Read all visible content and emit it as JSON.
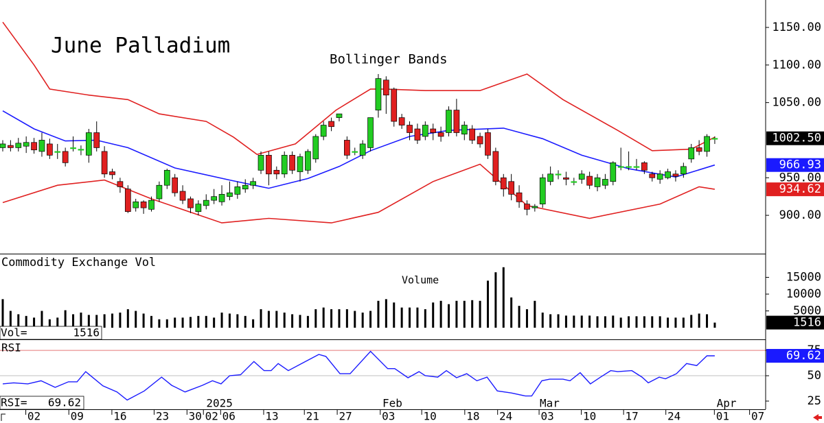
{
  "chart_data": [
    {
      "type": "candlestick",
      "title": "June Palladium",
      "subtitle": "Bollinger Bands",
      "open": [
        990,
        993,
        990,
        992,
        997,
        985,
        995,
        985,
        985,
        990,
        988,
        980,
        1010,
        985,
        958,
        945,
        935,
        910,
        918,
        908,
        922,
        940,
        950,
        932,
        922,
        905,
        913,
        920,
        918,
        925,
        928,
        935,
        940,
        960,
        980,
        960,
        955,
        980,
        958,
        960,
        975,
        1005,
        1025,
        1030,
        1000,
        985,
        980,
        990,
        1040,
        1080,
        1068,
        1030,
        1020,
        1015,
        1005,
        1015,
        1010,
        1010,
        1040,
        1008,
        1015,
        1005,
        1010,
        985,
        950,
        945,
        930,
        915,
        910,
        915,
        945,
        955,
        950,
        945,
        948,
        952,
        938,
        940,
        945,
        965,
        965,
        965,
        970,
        955,
        948,
        950,
        955,
        955,
        975,
        990,
        985,
        1002
      ],
      "high": [
        1000,
        1000,
        1003,
        1005,
        1003,
        1010,
        1002,
        995,
        990,
        1005,
        993,
        1015,
        1025,
        992,
        962,
        950,
        940,
        922,
        920,
        925,
        945,
        962,
        955,
        940,
        925,
        920,
        928,
        935,
        940,
        945,
        945,
        948,
        950,
        985,
        985,
        965,
        985,
        985,
        982,
        988,
        1008,
        1025,
        1030,
        1035,
        1005,
        990,
        1000,
        1030,
        1088,
        1085,
        1070,
        1035,
        1025,
        1022,
        1025,
        1022,
        1018,
        1045,
        1055,
        1025,
        1020,
        1010,
        1015,
        990,
        955,
        955,
        940,
        920,
        915,
        955,
        965,
        960,
        958,
        950,
        960,
        958,
        955,
        955,
        972,
        990,
        985,
        975,
        972,
        958,
        960,
        962,
        960,
        970,
        995,
        1000,
        1008,
        1005
      ],
      "low": [
        985,
        985,
        985,
        983,
        982,
        978,
        975,
        975,
        965,
        985,
        980,
        970,
        985,
        950,
        948,
        930,
        903,
        905,
        902,
        905,
        918,
        935,
        925,
        915,
        903,
        900,
        908,
        915,
        913,
        920,
        922,
        930,
        935,
        955,
        940,
        948,
        950,
        955,
        945,
        955,
        970,
        1000,
        1012,
        1025,
        975,
        980,
        975,
        985,
        1030,
        1035,
        1018,
        1015,
        1000,
        995,
        1000,
        1000,
        998,
        1005,
        1005,
        1000,
        995,
        990,
        975,
        940,
        925,
        920,
        910,
        900,
        905,
        910,
        940,
        948,
        940,
        940,
        942,
        935,
        932,
        935,
        940,
        960,
        960,
        960,
        955,
        945,
        942,
        948,
        945,
        950,
        970,
        980,
        978,
        995
      ],
      "close": [
        995,
        990,
        996,
        997,
        987,
        1000,
        980,
        985,
        970,
        990,
        988,
        1010,
        990,
        955,
        954,
        938,
        905,
        918,
        910,
        920,
        940,
        960,
        930,
        920,
        910,
        915,
        920,
        925,
        928,
        930,
        938,
        940,
        945,
        980,
        955,
        955,
        980,
        960,
        978,
        985,
        1005,
        1020,
        1018,
        1035,
        980,
        985,
        995,
        1030,
        1082,
        1060,
        1025,
        1020,
        1010,
        1000,
        1020,
        1010,
        1005,
        1040,
        1010,
        1020,
        1000,
        995,
        980,
        945,
        935,
        928,
        918,
        908,
        912,
        950,
        955,
        955,
        948,
        945,
        955,
        940,
        950,
        948,
        970,
        965,
        965,
        965,
        960,
        950,
        955,
        958,
        952,
        965,
        990,
        985,
        1005,
        1002.5
      ],
      "close_label": "1002.50",
      "up_color": "#22cc22",
      "down_color": "#e02020",
      "bands": [
        {
          "color": "#e02020",
          "x": [
            0,
            4,
            6,
            11,
            16,
            20,
            26,
            29.5,
            32.5,
            37.4,
            42.6,
            47,
            48.8,
            54,
            61,
            67,
            71.6,
            78.6,
            83,
            88,
            91
          ],
          "values": [
            1157,
            1100,
            1068,
            1060,
            1054,
            1035,
            1025,
            1004,
            981,
            995,
            1040,
            1068,
            1068,
            1066,
            1066,
            1088,
            1054,
            1013,
            986,
            988,
            1004
          ]
        },
        {
          "color": "#1a1aff",
          "x": [
            0,
            4,
            8,
            12,
            16,
            22,
            29,
            34,
            39,
            43,
            47,
            52,
            57,
            64,
            69,
            74,
            80,
            86,
            91
          ],
          "values": [
            1039,
            1015,
            999,
            1000,
            990,
            963,
            947,
            936,
            949,
            965,
            986,
            1005,
            1013,
            1016,
            1002,
            980,
            962,
            951,
            966.93
          ]
        },
        {
          "color": "#e02020",
          "x": [
            0,
            7,
            13,
            19,
            28,
            34,
            42,
            48,
            55,
            61,
            67,
            75,
            84,
            89,
            91
          ],
          "values": [
            917,
            940,
            947,
            922,
            890,
            896,
            890,
            904,
            945,
            968,
            913,
            896,
            915,
            938,
            934.62
          ]
        }
      ],
      "ylim": [
        849,
        1186.5
      ],
      "yticks": [
        {
          "value": 900,
          "label": "900.00"
        },
        {
          "value": 950,
          "label": "950.00"
        },
        {
          "value": 1050,
          "label": "1050.00"
        },
        {
          "value": 1100,
          "label": "1100.00"
        },
        {
          "value": 1150,
          "label": "1150.00"
        }
      ],
      "xlim": [
        -0.35,
        97.5
      ],
      "xticks": [
        {
          "value": 4.0,
          "label": "02"
        },
        {
          "value": 9.5,
          "label": "09"
        },
        {
          "value": 15,
          "label": "16"
        },
        {
          "value": 20.4,
          "label": "23"
        },
        {
          "value": 24.6,
          "label": "30"
        },
        {
          "value": 26.7,
          "label": "02"
        },
        {
          "value": 28.9,
          "label": "06"
        },
        {
          "value": 34.4,
          "label": "13"
        },
        {
          "value": 39.6,
          "label": "21"
        },
        {
          "value": 43.8,
          "label": "27"
        },
        {
          "value": 49.3,
          "label": "03"
        },
        {
          "value": 54.6,
          "label": "10"
        },
        {
          "value": 60.1,
          "label": "18"
        },
        {
          "value": 64.3,
          "label": "24"
        },
        {
          "value": 69.6,
          "label": "03"
        },
        {
          "value": 75,
          "label": "10"
        },
        {
          "value": 80.4,
          "label": "17"
        },
        {
          "value": 85.8,
          "label": "24"
        },
        {
          "value": 92,
          "label": "01"
        },
        {
          "value": 96.5,
          "label": "07"
        }
      ],
      "months": [
        {
          "value": 27.7,
          "label": "2025"
        },
        {
          "value": 49.8,
          "label": "Feb"
        },
        {
          "value": 69.9,
          "label": "Mar"
        },
        {
          "value": 92.5,
          "label": "Apr"
        }
      ]
    },
    {
      "type": "bar",
      "title": "Commodity Exchange Vol",
      "subtitle": "Volume",
      "readout_name": "Vol=",
      "color": "#000000",
      "values": [
        8500,
        5000,
        4000,
        3500,
        3000,
        5000,
        2500,
        3000,
        5200,
        4000,
        4500,
        3800,
        3800,
        4000,
        4200,
        4500,
        5500,
        5000,
        4200,
        3500,
        2500,
        2500,
        3000,
        3000,
        3200,
        3500,
        3500,
        3000,
        4500,
        4200,
        4000,
        3500,
        2500,
        5500,
        5000,
        5000,
        4500,
        4000,
        3800,
        3500,
        5500,
        6000,
        5500,
        5500,
        5500,
        5000,
        4500,
        5000,
        8000,
        8500,
        7500,
        6000,
        6000,
        6000,
        5500,
        7500,
        8000,
        7000,
        8000,
        8000,
        8200,
        8000,
        14000,
        16500,
        18000,
        9000,
        6500,
        5500,
        8000,
        4500,
        4000,
        4000,
        3600,
        3600,
        3600,
        3600,
        3400,
        3400,
        3600,
        3000,
        3400,
        3400,
        3400,
        3400,
        3400,
        3000,
        3000,
        3000,
        3800,
        4200,
        4000,
        1516
      ],
      "ylim": [
        -3470,
        21630
      ],
      "yticks": [
        5000,
        10000,
        15000
      ]
    },
    {
      "type": "line",
      "title": "RSI",
      "readout_name": "RSI=",
      "color": "#1a1aff",
      "x": [
        0,
        1.4,
        3.2,
        4.9,
        6.7,
        8.4,
        9.5,
        10.6,
        12.8,
        14.6,
        15.9,
        18.1,
        20.3,
        21.6,
        23.3,
        25.5,
        26.8,
        27.9,
        29,
        30.4,
        32.1,
        33.4,
        34.3,
        35.2,
        36.5,
        38.2,
        40.4,
        41.3,
        43.1,
        44.4,
        47,
        49.2,
        50.1,
        51.8,
        53.2,
        54,
        55.6,
        56.7,
        58,
        59.3,
        60.6,
        61.9,
        63.2,
        65,
        66.8,
        67.6,
        68.9,
        69.9,
        71.6,
        72.5,
        73.8,
        75.1,
        76.4,
        77.7,
        78.6,
        80.4,
        81.7,
        82.5,
        83.9,
        84.7,
        86.1,
        87.4,
        88.7,
        90,
        91
      ],
      "values": [
        42,
        43,
        42,
        45,
        38.5,
        44,
        44,
        54,
        40,
        34,
        26,
        35,
        48.6,
        40.5,
        34,
        40.5,
        45,
        42,
        50,
        51,
        64,
        55,
        55,
        62,
        55,
        62,
        71,
        69,
        52,
        52,
        74,
        57,
        57,
        48,
        54,
        50,
        48.6,
        55,
        48,
        52,
        45,
        48.6,
        35,
        33,
        30,
        30,
        45,
        46.6,
        46.6,
        45,
        53,
        42,
        48.6,
        55,
        54,
        55,
        48.6,
        43,
        48.6,
        47,
        52,
        62,
        60,
        69.6,
        69.62
      ],
      "ylim": [
        16.9,
        84.5
      ],
      "yticks": [
        25,
        50,
        75
      ],
      "grid_colors": [
        "#ffffff",
        "#aaaaaa",
        "#e06060"
      ]
    }
  ]
}
